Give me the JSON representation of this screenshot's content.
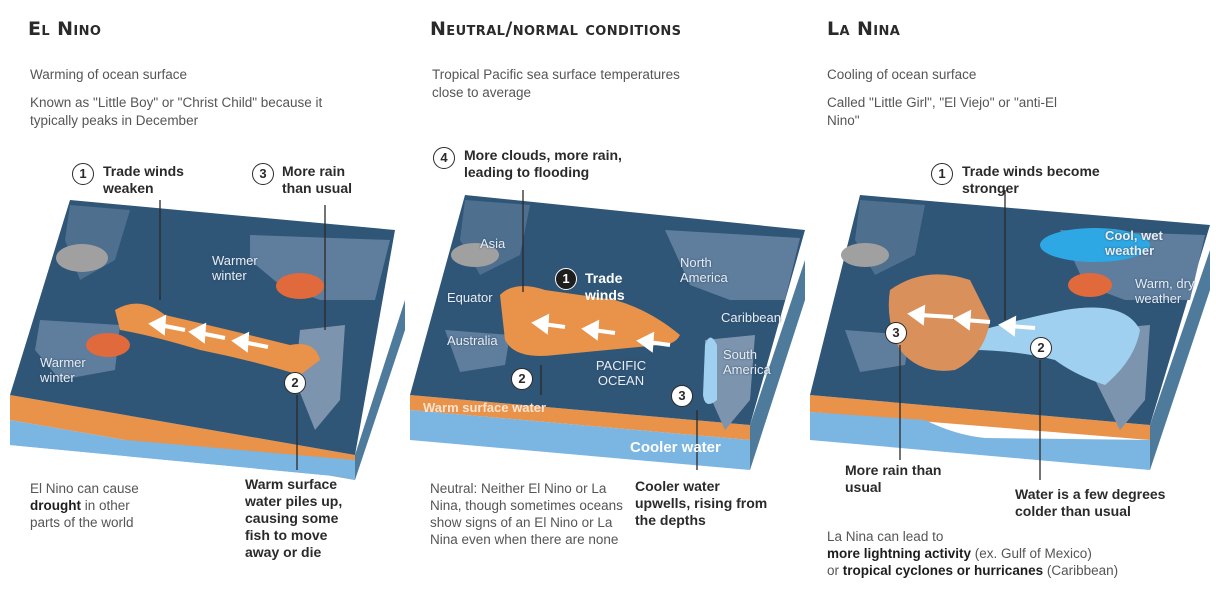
{
  "el_nino": {
    "title": "El Nino",
    "desc1": "Warming of ocean surface",
    "desc2": "Known as \"Little Boy\" or \"Christ Child\" because it typically peaks in December",
    "callout1_num": "1",
    "callout1": "Trade winds weaken",
    "callout3_num": "3",
    "callout3": "More rain than usual",
    "callout2_num": "2",
    "callout2": "Warm surface water piles up, causing some fish to move away or die",
    "label_warmer_winter_a": "Warmer winter",
    "label_warmer_winter_b": "Warmer winter",
    "bottom_pre": "El Nino can cause ",
    "bottom_bold": "drought",
    "bottom_post": " in other parts of the world"
  },
  "neutral": {
    "title": "Neutral/normal conditions",
    "desc1": "Tropical Pacific sea surface temperatures close to average",
    "callout4_num": "4",
    "callout4": "More clouds, more rain, leading to flooding",
    "callout1_num": "1",
    "callout1": "Trade winds",
    "callout2_num": "2",
    "callout3_num": "3",
    "callout3": "Cooler water upwells, rising from the depths",
    "label_asia": "Asia",
    "label_equator": "Equator",
    "label_australia": "Australia",
    "label_pacific": "PACIFIC OCEAN",
    "label_north_america": "North America",
    "label_caribbean": "Caribbean",
    "label_south_america": "South America",
    "label_warm_water": "Warm surface water",
    "label_cooler_water": "Cooler water",
    "bottom_text": "Neutral: Neither El Nino or La Nina, though sometimes oceans show signs of an El Nino or La Nina even when there are none"
  },
  "la_nina": {
    "title": "La Nina",
    "desc1": "Cooling of ocean surface",
    "desc2": "Called \"Little Girl\", \"El Viejo\" or \"anti-El Nino\"",
    "callout1_num": "1",
    "callout1": "Trade winds become stronger",
    "callout2_num": "2",
    "callout2": "Water is a few degrees colder than usual",
    "callout3_num": "3",
    "callout3": "More rain than usual",
    "label_cool_wet": "Cool, wet weather",
    "label_warm_dry": "Warm, dry weather",
    "bottom_pre": "La Nina can lead to",
    "bottom_bold1": "more lightning activity",
    "bottom_mid": " (ex. Gulf of Mexico)",
    "bottom_or": "or ",
    "bottom_bold2": "tropical cyclones or hurricanes",
    "bottom_post": " (Caribbean)"
  },
  "colors": {
    "ocean": "#2f5577",
    "ocean_side": "#6fa8d6",
    "warm": "#e8924a",
    "warm_side": "#f0a35a",
    "cool": "#9fd0ef",
    "cool_spot": "#2ea8e4",
    "land": "#7c94ad",
    "cloud": "#a0a0a0"
  }
}
